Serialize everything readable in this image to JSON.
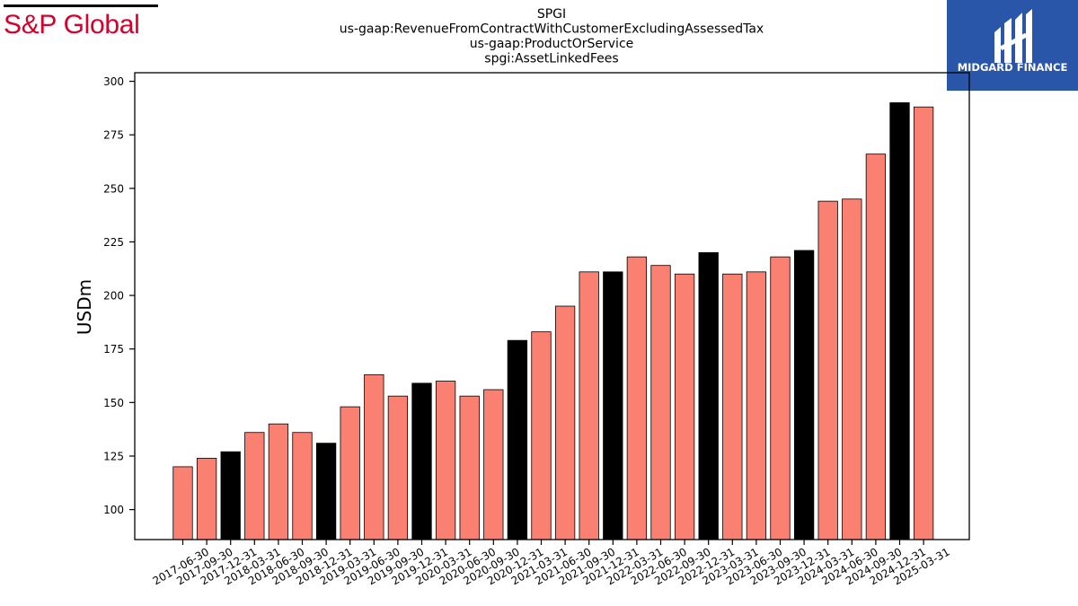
{
  "brand": {
    "left_name": "S&P Global",
    "right_name": "MIDGARD FINANCE"
  },
  "colors": {
    "default_bar": "#fa8072",
    "year_end_bar": "#000000",
    "brand_red": "#d6002a",
    "brand_blue": "#2a56aa"
  },
  "chart_data": {
    "type": "bar",
    "title_lines": [
      "SPGI",
      "us-gaap:RevenueFromContractWithCustomerExcludingAssessedTax",
      "us-gaap:ProductOrService",
      "spgi:AssetLinkedFees"
    ],
    "xlabel": "",
    "ylabel": "USDm",
    "ylim": [
      86,
      304
    ],
    "yticks": [
      100,
      125,
      150,
      175,
      200,
      225,
      250,
      275,
      300
    ],
    "grid": false,
    "categories": [
      "2017-06-30",
      "2017-09-30",
      "2017-12-31",
      "2018-03-31",
      "2018-06-30",
      "2018-09-30",
      "2018-12-31",
      "2019-03-31",
      "2019-06-30",
      "2019-09-30",
      "2019-12-31",
      "2020-03-31",
      "2020-06-30",
      "2020-09-30",
      "2020-12-31",
      "2021-03-31",
      "2021-06-30",
      "2021-09-30",
      "2021-12-31",
      "2022-03-31",
      "2022-06-30",
      "2022-09-30",
      "2022-12-31",
      "2023-03-31",
      "2023-06-30",
      "2023-09-30",
      "2023-12-31",
      "2024-03-31",
      "2024-06-30",
      "2024-09-30",
      "2024-12-31",
      "2025-03-31"
    ],
    "values": [
      120,
      124,
      127,
      136,
      140,
      136,
      131,
      148,
      163,
      153,
      159,
      160,
      153,
      156,
      179,
      183,
      195,
      211,
      211,
      218,
      214,
      210,
      220,
      210,
      211,
      218,
      221,
      244,
      245,
      266,
      290,
      288
    ]
  }
}
